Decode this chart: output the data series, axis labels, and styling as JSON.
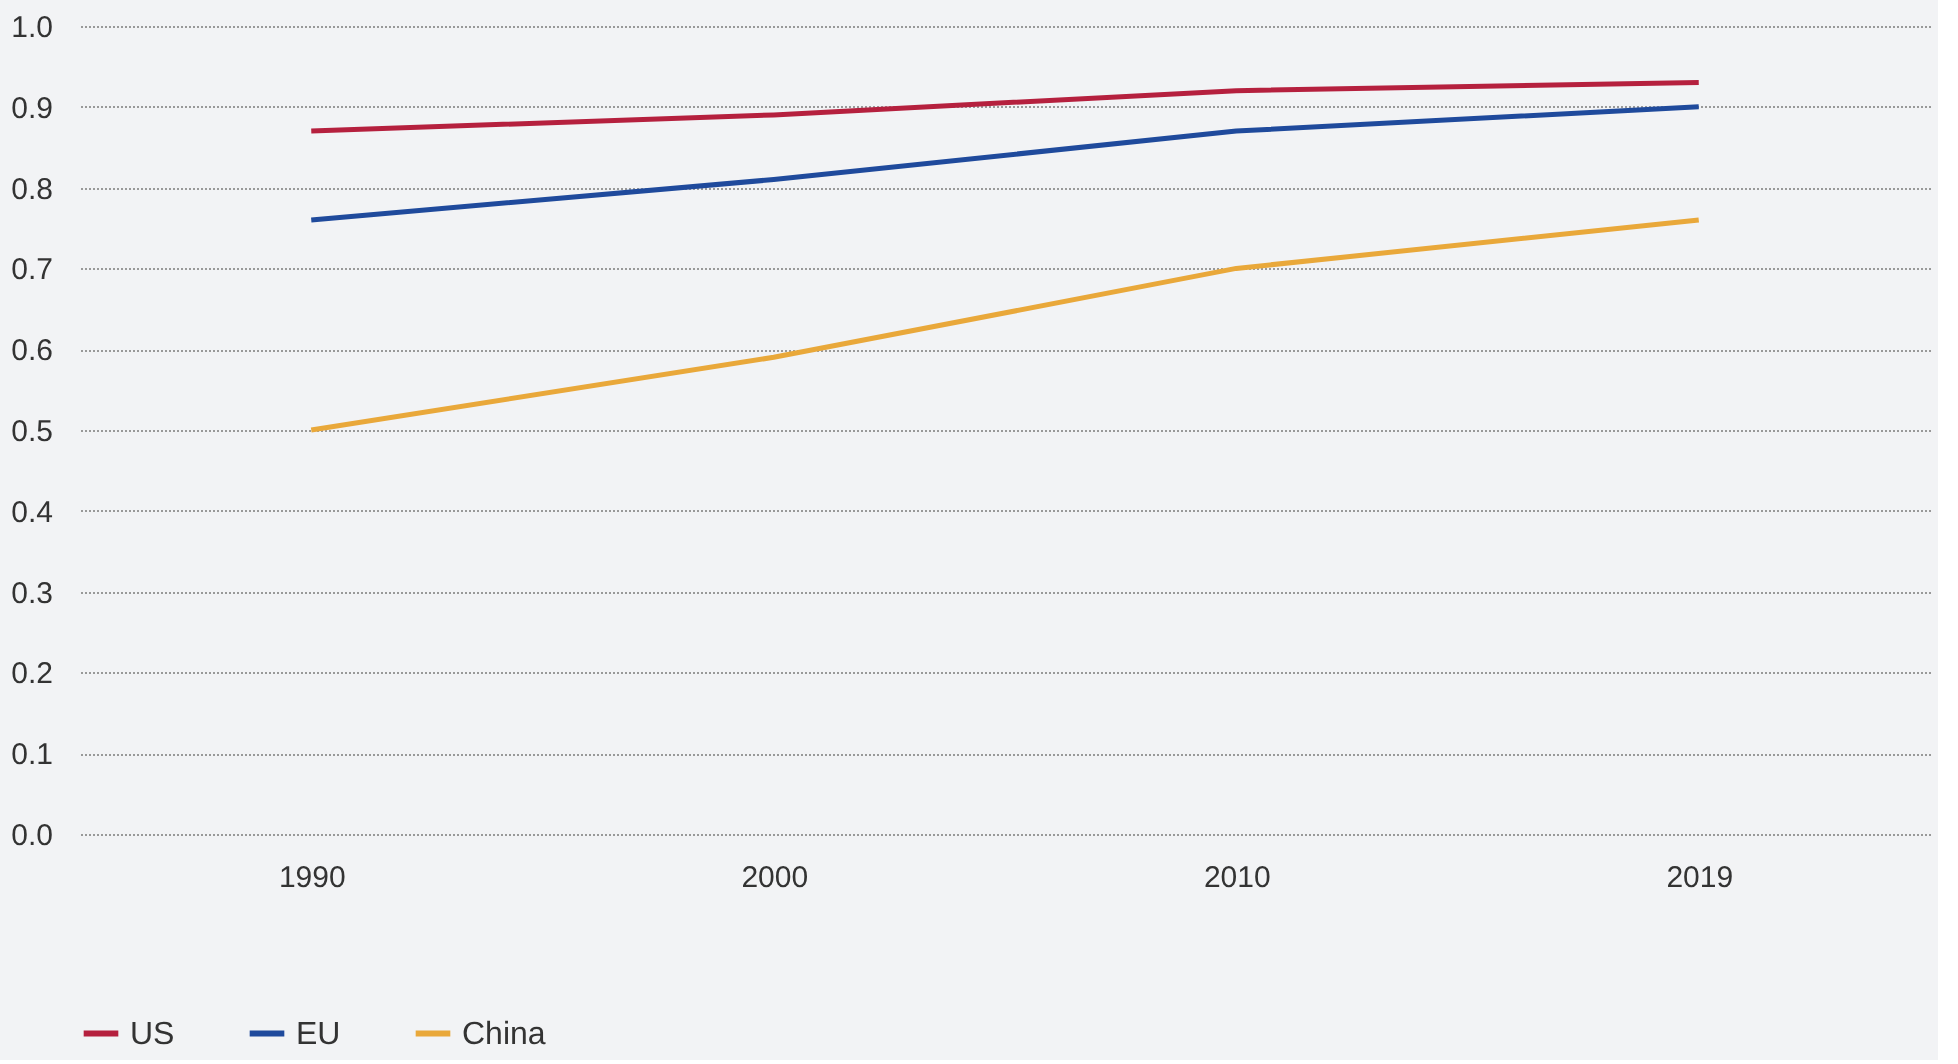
{
  "chart_data": {
    "type": "line",
    "categories": [
      "1990",
      "2000",
      "2010",
      "2019"
    ],
    "series": [
      {
        "name": "US",
        "color": "#b5203e",
        "values": [
          0.87,
          0.89,
          0.92,
          0.93
        ]
      },
      {
        "name": "EU",
        "color": "#1f4a9c",
        "values": [
          0.76,
          0.81,
          0.87,
          0.9
        ]
      },
      {
        "name": "China",
        "color": "#e9a83a",
        "values": [
          0.5,
          0.59,
          0.7,
          0.76
        ]
      }
    ],
    "ylim": [
      0,
      1
    ],
    "yticks": [
      {
        "value": 0,
        "label": "0.0"
      },
      0.1,
      0.2,
      0.3,
      0.4,
      0.5,
      0.6,
      0.7,
      0.8,
      0.9,
      {
        "value": 1,
        "label": "1.0"
      }
    ],
    "grid": "y",
    "legend": "bottom left",
    "marker": "none",
    "line_style": "solid"
  }
}
